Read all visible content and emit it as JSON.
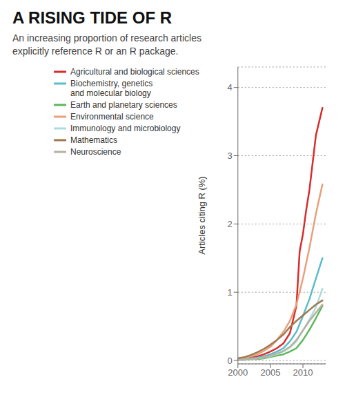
{
  "chart_data": {
    "type": "line",
    "title": "A RISING TIDE OF R",
    "subtitle": "An increasing proportion of research articles\nexplicitly reference R or an R package.",
    "y_label": "Articles citing R (%)",
    "xlim": [
      2000,
      2013.5
    ],
    "ylim": [
      -0.05,
      4.3
    ],
    "xticks": [
      2000,
      2005,
      2010
    ],
    "yticks": [
      0,
      1,
      2,
      3,
      4
    ],
    "grid": true,
    "legend": "upper left",
    "series": [
      {
        "name": "Agricultural and biological sciences",
        "color": "#d92b2b",
        "x": [
          2000,
          2001,
          2002,
          2003,
          2004,
          2005,
          2006,
          2007,
          2008,
          2009,
          2009.5,
          2010,
          2010.5,
          2011,
          2012,
          2013
        ],
        "values": [
          0.02,
          0.03,
          0.04,
          0.06,
          0.09,
          0.13,
          0.18,
          0.25,
          0.4,
          0.8,
          1.6,
          1.85,
          2.2,
          2.5,
          3.3,
          3.7
        ]
      },
      {
        "name": "Biochemistry, genetics\nand molecular biology",
        "color": "#5bbccc",
        "x": [
          2000,
          2001,
          2002,
          2003,
          2004,
          2005,
          2006,
          2007,
          2008,
          2009,
          2010,
          2011,
          2012,
          2013
        ],
        "values": [
          0.01,
          0.02,
          0.03,
          0.04,
          0.06,
          0.09,
          0.13,
          0.18,
          0.28,
          0.42,
          0.65,
          0.9,
          1.2,
          1.5
        ]
      },
      {
        "name": "Earth and planetary sciences",
        "color": "#5cb85c",
        "x": [
          2000,
          2001,
          2002,
          2003,
          2004,
          2005,
          2006,
          2007,
          2008,
          2009,
          2010,
          2011,
          2012,
          2013
        ],
        "values": [
          0.01,
          0.01,
          0.02,
          0.02,
          0.03,
          0.05,
          0.07,
          0.09,
          0.13,
          0.18,
          0.3,
          0.45,
          0.62,
          0.8
        ]
      },
      {
        "name": "Environmental science",
        "color": "#e8a07a",
        "x": [
          2000,
          2001,
          2002,
          2003,
          2004,
          2005,
          2006,
          2007,
          2008,
          2009,
          2010,
          2011,
          2012,
          2013
        ],
        "values": [
          0.03,
          0.04,
          0.06,
          0.09,
          0.14,
          0.2,
          0.3,
          0.42,
          0.58,
          0.82,
          1.2,
          1.65,
          2.15,
          2.58
        ]
      },
      {
        "name": "Immunology and microbiology",
        "color": "#aadedc",
        "x": [
          2000,
          2001,
          2002,
          2003,
          2004,
          2005,
          2006,
          2007,
          2008,
          2009,
          2010,
          2011,
          2012,
          2013
        ],
        "values": [
          0.01,
          0.01,
          0.02,
          0.03,
          0.04,
          0.06,
          0.09,
          0.13,
          0.19,
          0.28,
          0.44,
          0.6,
          0.78,
          1.05
        ]
      },
      {
        "name": "Mathematics",
        "color": "#a07850",
        "x": [
          2000,
          2001,
          2002,
          2003,
          2004,
          2005,
          2006,
          2007,
          2008,
          2009,
          2010,
          2011,
          2012,
          2013
        ],
        "values": [
          0.03,
          0.05,
          0.08,
          0.12,
          0.17,
          0.23,
          0.3,
          0.38,
          0.49,
          0.58,
          0.66,
          0.74,
          0.82,
          0.88
        ]
      },
      {
        "name": "Neuroscience",
        "color": "#b8b0a0",
        "x": [
          2000,
          2001,
          2002,
          2003,
          2004,
          2005,
          2006,
          2007,
          2008,
          2009,
          2010,
          2011,
          2012,
          2013
        ],
        "values": [
          0.01,
          0.01,
          0.02,
          0.03,
          0.04,
          0.07,
          0.1,
          0.14,
          0.2,
          0.3,
          0.44,
          0.58,
          0.7,
          0.82
        ]
      }
    ]
  }
}
